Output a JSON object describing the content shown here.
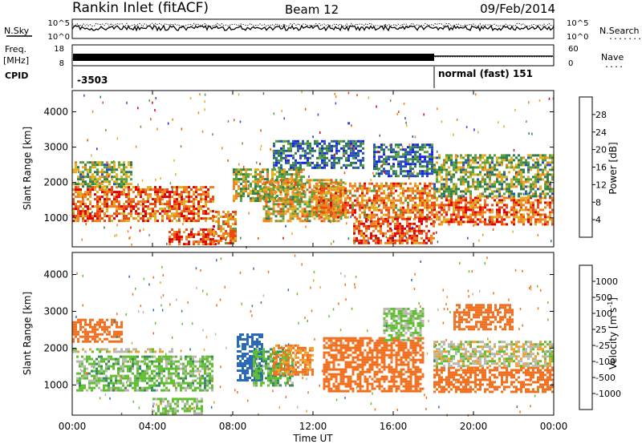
{
  "header": {
    "station": "Rankin Inlet (fitACF)",
    "beam": "Beam 12",
    "date": "09/Feb/2014"
  },
  "strip_panels": {
    "nsky": {
      "label": "N.Sky",
      "right_label": "N.Search",
      "right_dots": "........",
      "y_ticks_left": [
        "10^5",
        "10^0"
      ],
      "y_ticks_right": [
        "10^5",
        "10^0"
      ]
    },
    "freq": {
      "label_line1": "Freq.",
      "label_line2": "[MHz]",
      "y_ticks_left": [
        "18",
        "8"
      ],
      "right_label": "Nave",
      "right_dots": "....",
      "y_ticks_right": [
        "60",
        "0"
      ]
    },
    "cpid": {
      "label": "CPID",
      "segments": [
        {
          "label": "-3503",
          "start_hour": 0,
          "end_hour": 18
        },
        {
          "label": "normal (fast) 151",
          "start_hour": 18,
          "end_hour": 24
        }
      ]
    }
  },
  "axes": {
    "ylabel": "Slant Range [km]",
    "xlabel": "Time UT",
    "x_ticks": [
      "00:00",
      "04:00",
      "08:00",
      "12:00",
      "16:00",
      "20:00",
      "00:00"
    ],
    "y_ticks": [
      "1000",
      "2000",
      "3000",
      "4000"
    ]
  },
  "colorbars": {
    "power": {
      "label": "Power [dB]",
      "ticks": [
        "4",
        "8",
        "12",
        "16",
        "20",
        "24",
        "28"
      ],
      "colors": [
        "#1a22e8",
        "#2a4fc0",
        "#2f7f4e",
        "#5aa040",
        "#e0b020",
        "#f08020",
        "#e84a10",
        "#e00000"
      ]
    },
    "velocity": {
      "label": "Velocity [m s",
      "label_sup": "-1",
      "label_end": "]",
      "ticks": [
        "1000",
        "500",
        "100",
        "25",
        "-25",
        "-100",
        "-500",
        "-1000"
      ],
      "colors": [
        "#1a3fc8",
        "#2a6ab8",
        "#3a8a60",
        "#5fbf30",
        "#b8b8b0",
        "#f0a030",
        "#f07020",
        "#ff3010",
        "#e00000"
      ]
    }
  },
  "chart_data": {
    "type": "heatmap",
    "x_range_hours": [
      0,
      24
    ],
    "y_range_km": [
      180,
      4600
    ],
    "panels": [
      {
        "name": "Power",
        "unit": "dB",
        "colorbar": "power",
        "regions": [
          {
            "t0": 0.0,
            "t1": 7.0,
            "r0": 900,
            "r1": 1900,
            "value": 24
          },
          {
            "t0": 0.0,
            "t1": 3.0,
            "r0": 1900,
            "r1": 2600,
            "value": 14
          },
          {
            "t0": 4.8,
            "t1": 7.2,
            "r0": 250,
            "r1": 700,
            "value": 26
          },
          {
            "t0": 7.0,
            "t1": 8.2,
            "r0": 300,
            "r1": 1200,
            "value": 22
          },
          {
            "t0": 8.0,
            "t1": 11.5,
            "r0": 1500,
            "r1": 2400,
            "value": 16
          },
          {
            "t0": 9.5,
            "t1": 13.5,
            "r0": 900,
            "r1": 2100,
            "value": 18
          },
          {
            "t0": 12.0,
            "t1": 18.0,
            "r0": 1000,
            "r1": 2000,
            "value": 22
          },
          {
            "t0": 10.0,
            "t1": 14.5,
            "r0": 2400,
            "r1": 3200,
            "value": 8
          },
          {
            "t0": 14.0,
            "t1": 18.0,
            "r0": 300,
            "r1": 1000,
            "value": 26
          },
          {
            "t0": 15.0,
            "t1": 18.0,
            "r0": 2200,
            "r1": 3100,
            "value": 8
          },
          {
            "t0": 18.0,
            "t1": 24.0,
            "r0": 800,
            "r1": 1600,
            "value": 24
          },
          {
            "t0": 18.0,
            "t1": 24.0,
            "r0": 1600,
            "r1": 2800,
            "value": 14
          }
        ]
      },
      {
        "name": "Velocity",
        "unit": "m/s",
        "colorbar": "velocity",
        "regions": [
          {
            "t0": 0.0,
            "t1": 5.0,
            "r0": 1900,
            "r1": 2000,
            "value": 0
          },
          {
            "t0": 0.0,
            "t1": 2.5,
            "r0": 2200,
            "r1": 2800,
            "value": -200
          },
          {
            "t0": 0.2,
            "t1": 7.0,
            "r0": 850,
            "r1": 1800,
            "value": 60
          },
          {
            "t0": 4.0,
            "t1": 6.5,
            "r0": 250,
            "r1": 650,
            "value": 30
          },
          {
            "t0": 8.2,
            "t1": 9.5,
            "r0": 1100,
            "r1": 2400,
            "value": 600
          },
          {
            "t0": 9.0,
            "t1": 11.0,
            "r0": 1000,
            "r1": 2000,
            "value": 80
          },
          {
            "t0": 10.0,
            "t1": 12.0,
            "r0": 1300,
            "r1": 2100,
            "value": -100
          },
          {
            "t0": 12.5,
            "t1": 17.5,
            "r0": 800,
            "r1": 2300,
            "value": -300
          },
          {
            "t0": 15.5,
            "t1": 17.5,
            "r0": 2200,
            "r1": 3100,
            "value": 40
          },
          {
            "t0": 18.0,
            "t1": 24.0,
            "r0": 800,
            "r1": 1500,
            "value": -250
          },
          {
            "t0": 18.0,
            "t1": 24.0,
            "r0": 1500,
            "r1": 2200,
            "value": 0
          },
          {
            "t0": 19.0,
            "t1": 22.0,
            "r0": 2500,
            "r1": 3200,
            "value": -400
          }
        ]
      }
    ]
  }
}
